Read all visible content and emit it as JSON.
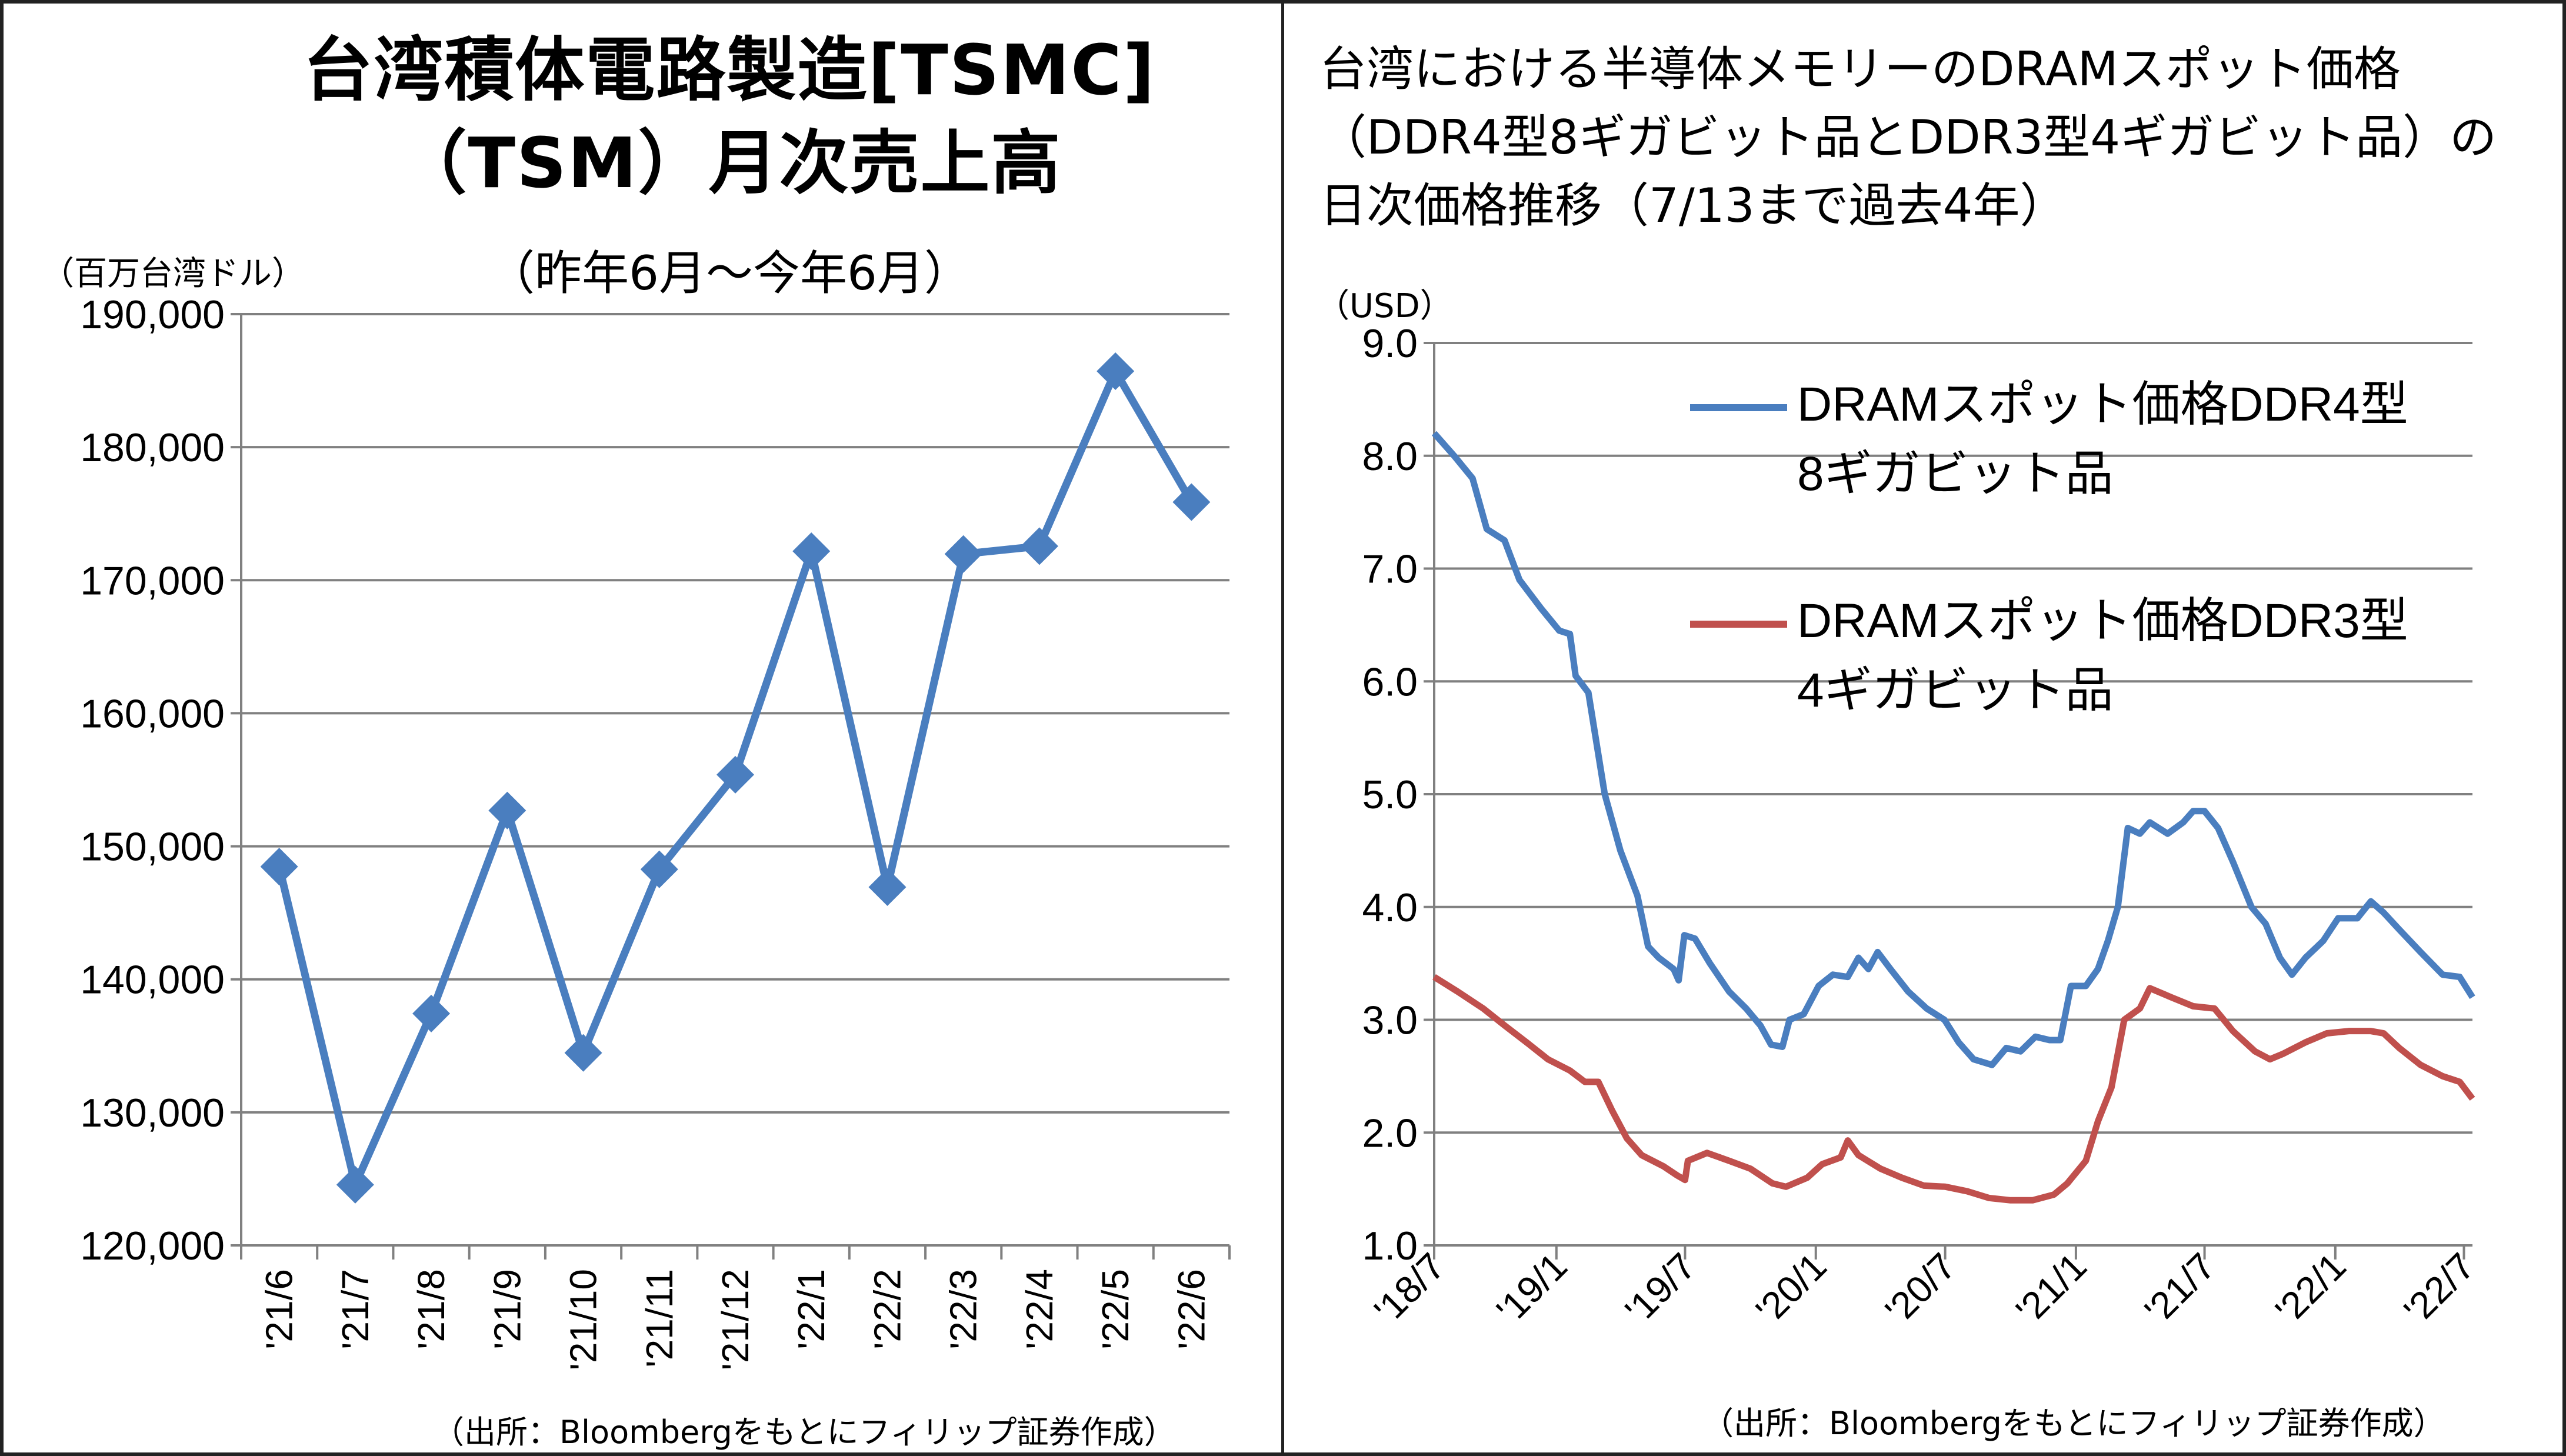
{
  "left_panel": {
    "title_line1": "台湾積体電路製造[TSMC]",
    "title_line2": "（TSM）月次売上高",
    "subtitle": "（昨年6月～今年6月）",
    "unit": "（百万台湾ドル）",
    "source": "（出所：Bloombergをもとにフィリップ証券作成）"
  },
  "right_panel": {
    "title": "台湾における半導体メモリーのDRAMスポット価格（DDR4型8ギガビット品とDDR3型4ギガビット品）の日次価格推移（7/13まで過去4年）",
    "unit": "（USD）",
    "source": "（出所：Bloombergをもとにフィリップ証券作成）"
  },
  "colors": {
    "blue_series": "#4a7ebf",
    "red_series": "#c0504d",
    "grid": "#808080",
    "axis": "#808080"
  },
  "chart_data": [
    {
      "type": "line",
      "title": "台湾積体電路製造[TSMC]（TSM）月次売上高",
      "subtitle": "（昨年6月～今年6月）",
      "ylabel": "（百万台湾ドル）",
      "xlabel": "",
      "ylim": [
        120000,
        190000
      ],
      "yticks": [
        "190,000",
        "180,000",
        "170,000",
        "160,000",
        "150,000",
        "140,000",
        "130,000",
        "120,000"
      ],
      "ytick_values": [
        190000,
        180000,
        170000,
        160000,
        150000,
        140000,
        130000,
        120000
      ],
      "grid": true,
      "marker": "diamond",
      "categories": [
        "'21/6",
        "'21/7",
        "'21/8",
        "'21/9",
        "'21/10",
        "'21/11",
        "'21/12",
        "'22/1",
        "'22/2",
        "'22/3",
        "'22/4",
        "'22/5",
        "'22/6"
      ],
      "series": [
        {
          "color": "#4a7ebf",
          "values": [
            148470,
            124560,
            137430,
            152690,
            134470,
            148270,
            155380,
            172180,
            146930,
            171970,
            172560,
            185710,
            175870
          ]
        }
      ]
    },
    {
      "type": "line",
      "title": "台湾における半導体メモリーのDRAMスポット価格（DDR4型8ギガビット品とDDR3型4ギガビット品）の日次価格推移（7/13まで過去4年）",
      "ylabel": "（USD）",
      "xlabel": "",
      "ylim": [
        1.0,
        9.0
      ],
      "yticks": [
        "9.0",
        "8.0",
        "7.0",
        "6.0",
        "5.0",
        "4.0",
        "3.0",
        "2.0",
        "1.0"
      ],
      "ytick_values": [
        9,
        8,
        7,
        6,
        5,
        4,
        3,
        2,
        1
      ],
      "xlim": [
        "2018-07-13",
        "2022-07-13"
      ],
      "xticks": [
        "'18/7",
        "'19/1",
        "'19/7",
        "'20/1",
        "'20/7",
        "'21/1",
        "'21/7",
        "'22/1",
        "'22/7"
      ],
      "xtick_dates": [
        "2018-07-01",
        "2019-01-01",
        "2019-07-01",
        "2020-01-01",
        "2020-07-01",
        "2021-01-01",
        "2021-07-01",
        "2022-01-01",
        "2022-07-01"
      ],
      "grid": true,
      "legend": "top-right",
      "series": [
        {
          "name": "DRAMスポット価格DDR4型8ギガビット品",
          "legend_line1": "DRAMスポット価格DDR4型",
          "legend_line2": "8ギガビット品",
          "color": "#4a7ebf",
          "points": [
            [
              "2018-07-13",
              8.2
            ],
            [
              "2018-08-10",
              8.0
            ],
            [
              "2018-09-05",
              7.8
            ],
            [
              "2018-09-25",
              7.35
            ],
            [
              "2018-10-20",
              7.25
            ],
            [
              "2018-11-10",
              6.9
            ],
            [
              "2018-12-10",
              6.65
            ],
            [
              "2019-01-05",
              6.45
            ],
            [
              "2019-01-20",
              6.42
            ],
            [
              "2019-01-28",
              6.05
            ],
            [
              "2019-02-15",
              5.9
            ],
            [
              "2019-03-10",
              5.0
            ],
            [
              "2019-04-01",
              4.5
            ],
            [
              "2019-04-25",
              4.1
            ],
            [
              "2019-05-10",
              3.65
            ],
            [
              "2019-05-25",
              3.55
            ],
            [
              "2019-06-15",
              3.45
            ],
            [
              "2019-06-22",
              3.35
            ],
            [
              "2019-06-30",
              3.75
            ],
            [
              "2019-07-15",
              3.72
            ],
            [
              "2019-08-05",
              3.5
            ],
            [
              "2019-09-01",
              3.25
            ],
            [
              "2019-09-25",
              3.1
            ],
            [
              "2019-10-15",
              2.95
            ],
            [
              "2019-10-30",
              2.78
            ],
            [
              "2019-11-15",
              2.76
            ],
            [
              "2019-11-25",
              3.0
            ],
            [
              "2019-12-15",
              3.05
            ],
            [
              "2020-01-05",
              3.3
            ],
            [
              "2020-01-25",
              3.4
            ],
            [
              "2020-02-15",
              3.38
            ],
            [
              "2020-03-01",
              3.55
            ],
            [
              "2020-03-15",
              3.45
            ],
            [
              "2020-03-28",
              3.6
            ],
            [
              "2020-04-15",
              3.45
            ],
            [
              "2020-05-10",
              3.25
            ],
            [
              "2020-06-05",
              3.1
            ],
            [
              "2020-06-30",
              3.0
            ],
            [
              "2020-07-20",
              2.8
            ],
            [
              "2020-08-10",
              2.65
            ],
            [
              "2020-09-05",
              2.6
            ],
            [
              "2020-09-25",
              2.75
            ],
            [
              "2020-10-15",
              2.72
            ],
            [
              "2020-11-05",
              2.85
            ],
            [
              "2020-11-25",
              2.82
            ],
            [
              "2020-12-10",
              2.82
            ],
            [
              "2020-12-25",
              3.3
            ],
            [
              "2021-01-15",
              3.3
            ],
            [
              "2021-02-01",
              3.45
            ],
            [
              "2021-02-15",
              3.7
            ],
            [
              "2021-03-01",
              4.0
            ],
            [
              "2021-03-15",
              4.7
            ],
            [
              "2021-04-01",
              4.65
            ],
            [
              "2021-04-15",
              4.75
            ],
            [
              "2021-05-10",
              4.65
            ],
            [
              "2021-06-01",
              4.75
            ],
            [
              "2021-06-15",
              4.85
            ],
            [
              "2021-07-01",
              4.85
            ],
            [
              "2021-07-20",
              4.7
            ],
            [
              "2021-08-10",
              4.4
            ],
            [
              "2021-09-05",
              4.0
            ],
            [
              "2021-09-25",
              3.85
            ],
            [
              "2021-10-15",
              3.55
            ],
            [
              "2021-11-01",
              3.4
            ],
            [
              "2021-11-20",
              3.55
            ],
            [
              "2021-12-15",
              3.7
            ],
            [
              "2022-01-05",
              3.9
            ],
            [
              "2022-02-01",
              3.9
            ],
            [
              "2022-02-20",
              4.05
            ],
            [
              "2022-03-10",
              3.95
            ],
            [
              "2022-04-01",
              3.8
            ],
            [
              "2022-05-01",
              3.6
            ],
            [
              "2022-06-01",
              3.4
            ],
            [
              "2022-06-25",
              3.38
            ],
            [
              "2022-07-13",
              3.2
            ]
          ]
        },
        {
          "name": "DRAMスポット価格DDR3型4ギガビット品",
          "legend_line1": "DRAMスポット価格DDR3型",
          "legend_line2": "4ギガビット品",
          "color": "#c0504d",
          "points": [
            [
              "2018-07-13",
              3.38
            ],
            [
              "2018-08-15",
              3.25
            ],
            [
              "2018-09-20",
              3.1
            ],
            [
              "2018-10-20",
              2.95
            ],
            [
              "2018-11-20",
              2.8
            ],
            [
              "2018-12-20",
              2.65
            ],
            [
              "2019-01-20",
              2.55
            ],
            [
              "2019-02-10",
              2.45
            ],
            [
              "2019-03-01",
              2.45
            ],
            [
              "2019-03-20",
              2.2
            ],
            [
              "2019-04-10",
              1.95
            ],
            [
              "2019-05-01",
              1.8
            ],
            [
              "2019-06-01",
              1.7
            ],
            [
              "2019-06-20",
              1.62
            ],
            [
              "2019-07-01",
              1.58
            ],
            [
              "2019-07-05",
              1.75
            ],
            [
              "2019-08-01",
              1.82
            ],
            [
              "2019-09-01",
              1.75
            ],
            [
              "2019-10-01",
              1.68
            ],
            [
              "2019-11-01",
              1.55
            ],
            [
              "2019-11-20",
              1.52
            ],
            [
              "2019-12-20",
              1.6
            ],
            [
              "2020-01-10",
              1.72
            ],
            [
              "2020-02-05",
              1.78
            ],
            [
              "2020-02-15",
              1.93
            ],
            [
              "2020-03-01",
              1.8
            ],
            [
              "2020-04-01",
              1.68
            ],
            [
              "2020-05-01",
              1.6
            ],
            [
              "2020-06-01",
              1.53
            ],
            [
              "2020-07-01",
              1.52
            ],
            [
              "2020-08-01",
              1.48
            ],
            [
              "2020-09-01",
              1.42
            ],
            [
              "2020-10-01",
              1.4
            ],
            [
              "2020-11-01",
              1.4
            ],
            [
              "2020-12-01",
              1.45
            ],
            [
              "2020-12-20",
              1.55
            ],
            [
              "2021-01-15",
              1.75
            ],
            [
              "2021-02-01",
              2.1
            ],
            [
              "2021-02-20",
              2.4
            ],
            [
              "2021-03-10",
              3.0
            ],
            [
              "2021-04-01",
              3.1
            ],
            [
              "2021-04-15",
              3.28
            ],
            [
              "2021-05-15",
              3.2
            ],
            [
              "2021-06-15",
              3.12
            ],
            [
              "2021-07-15",
              3.1
            ],
            [
              "2021-08-10",
              2.9
            ],
            [
              "2021-09-10",
              2.72
            ],
            [
              "2021-10-01",
              2.65
            ],
            [
              "2021-10-20",
              2.7
            ],
            [
              "2021-11-20",
              2.8
            ],
            [
              "2021-12-20",
              2.88
            ],
            [
              "2022-01-20",
              2.9
            ],
            [
              "2022-02-20",
              2.9
            ],
            [
              "2022-03-10",
              2.88
            ],
            [
              "2022-04-01",
              2.75
            ],
            [
              "2022-05-01",
              2.6
            ],
            [
              "2022-06-01",
              2.5
            ],
            [
              "2022-06-25",
              2.45
            ],
            [
              "2022-07-13",
              2.3
            ]
          ]
        }
      ]
    }
  ]
}
